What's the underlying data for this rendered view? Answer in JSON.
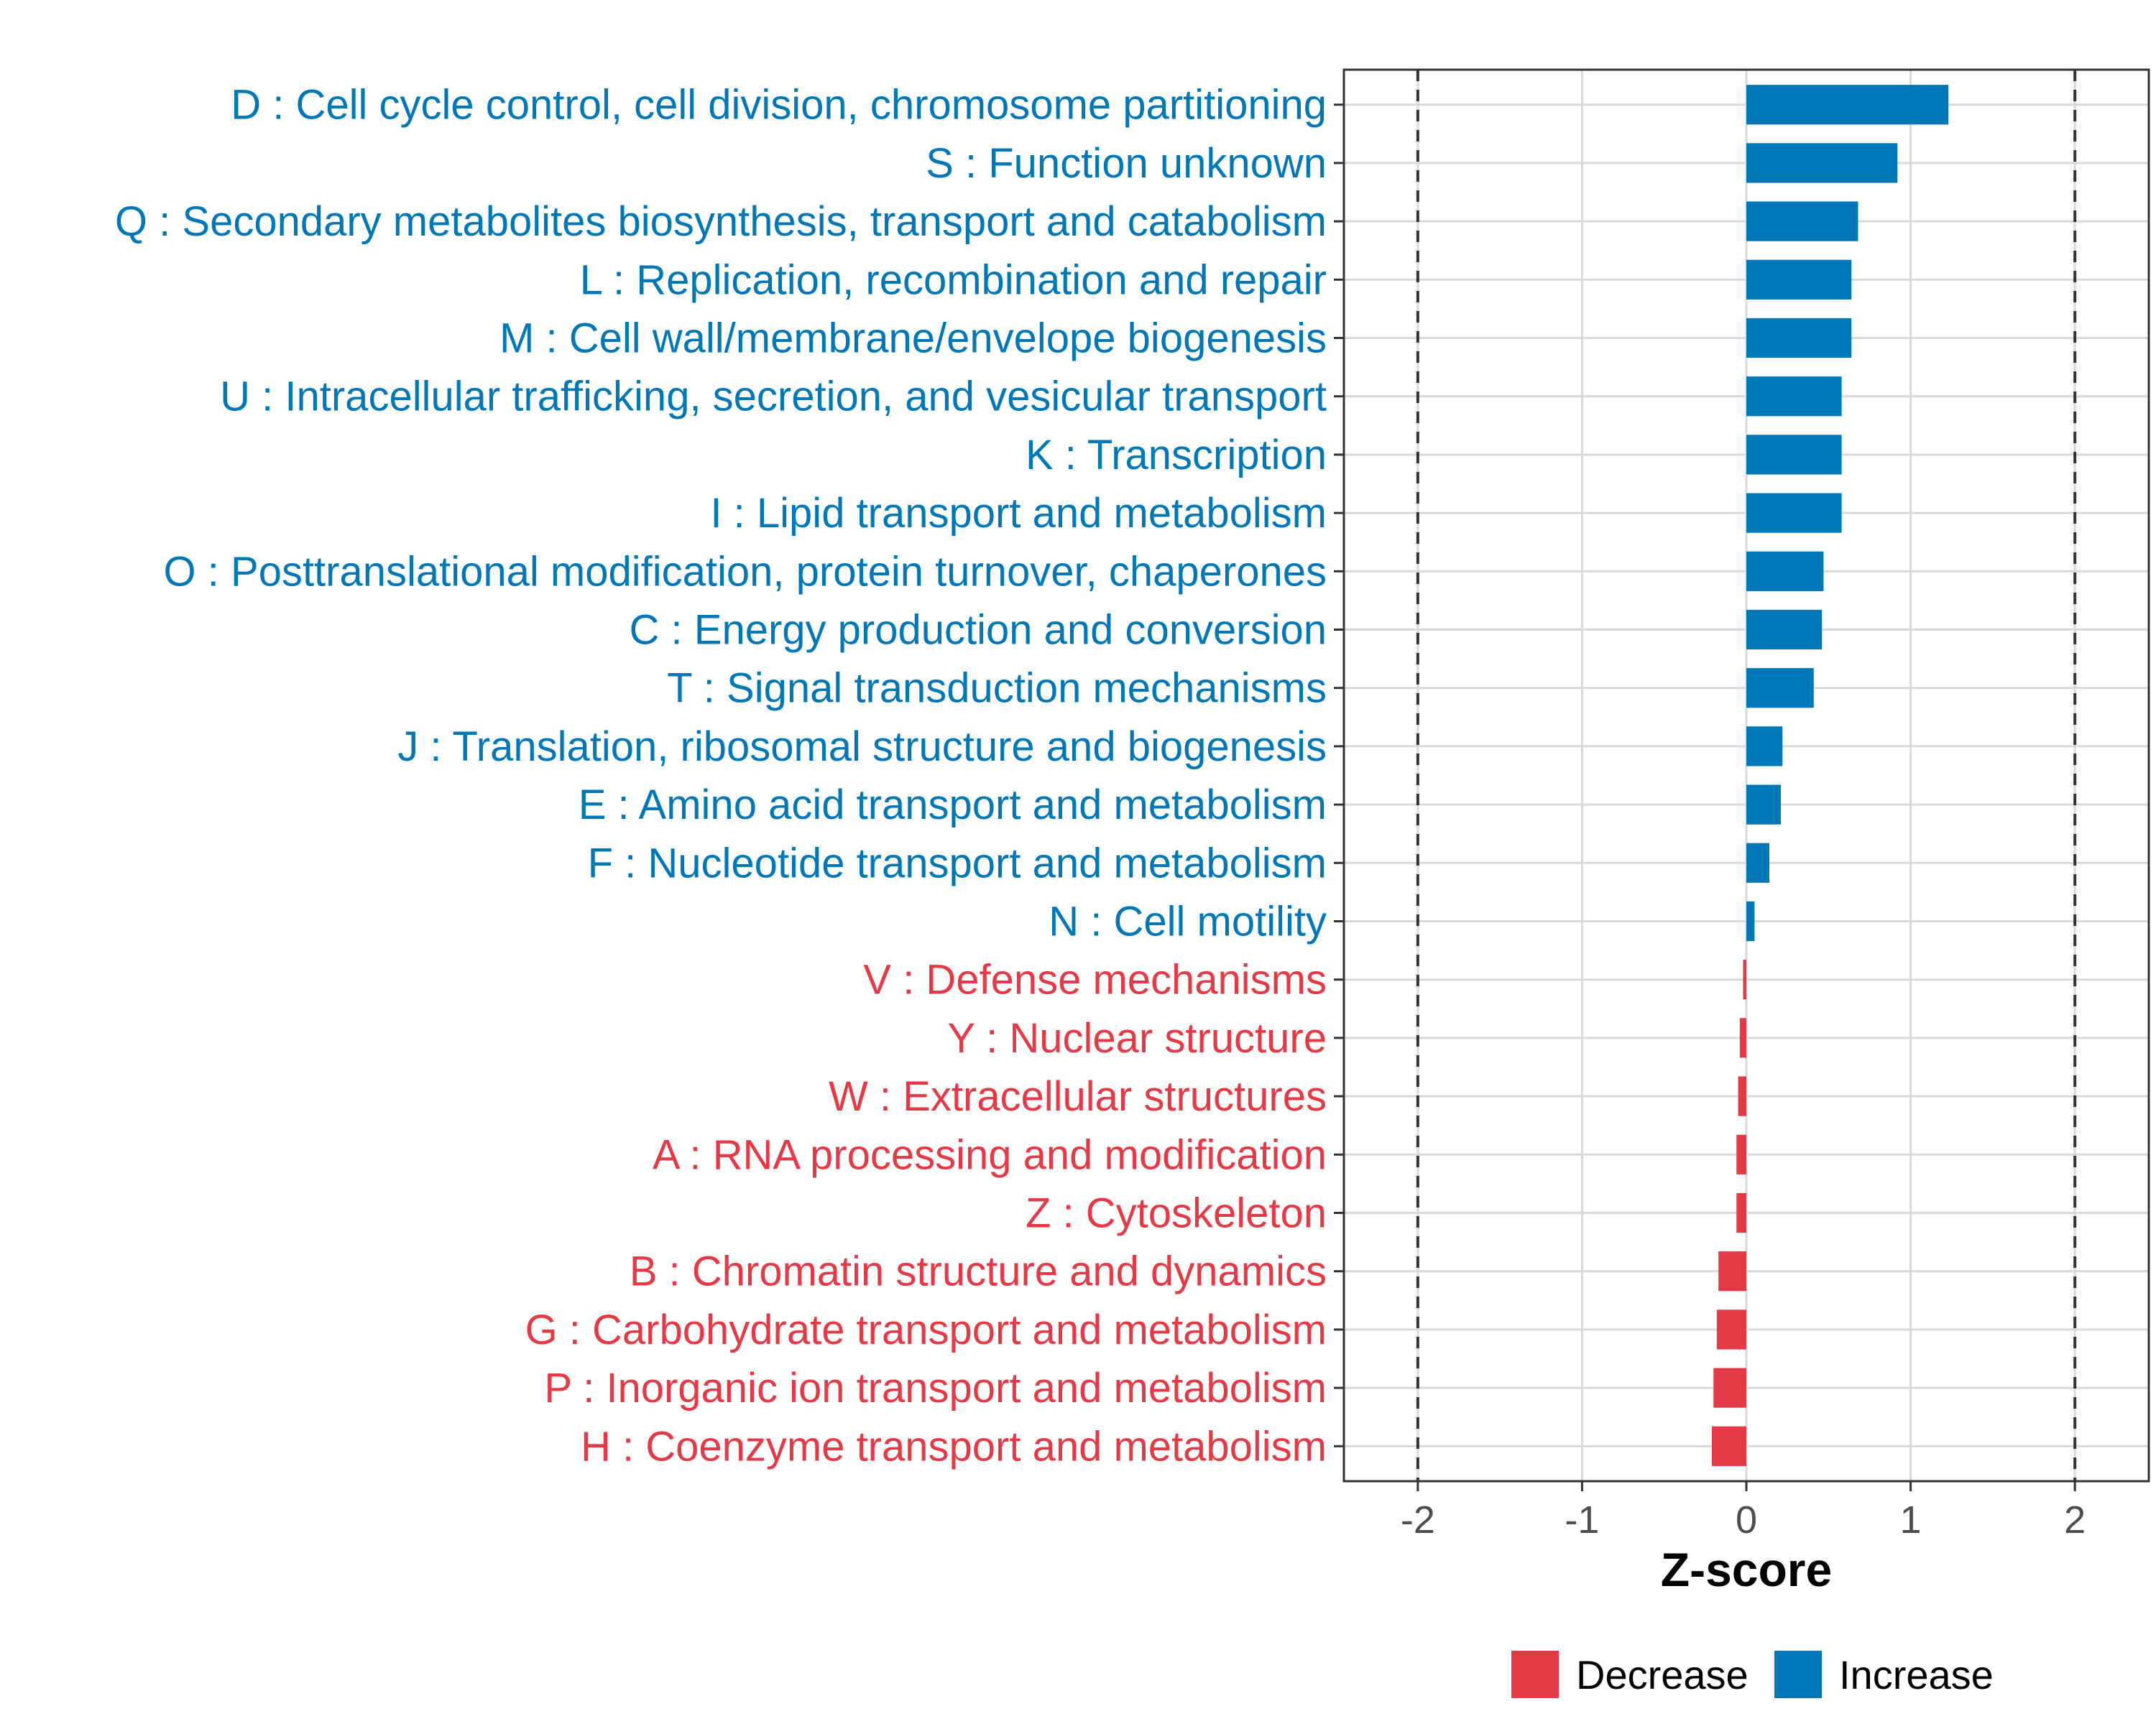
{
  "chart_data": {
    "type": "bar",
    "orientation": "horizontal",
    "xlabel": "Z-score",
    "ylabel": "",
    "xlim": [
      -2.45,
      2.45
    ],
    "xticks": [
      -2,
      -1,
      0,
      1,
      2
    ],
    "xtick_labels": [
      "-2",
      "-1",
      "0",
      "1",
      "2"
    ],
    "reference_lines": [
      -2,
      2
    ],
    "grid": true,
    "colors": {
      "Decrease": "#e63946",
      "Increase": "#0077b6"
    },
    "legend": {
      "position": "bottom",
      "entries": [
        "Decrease",
        "Increase"
      ]
    },
    "categories": [
      "D : Cell cycle control, cell division, chromosome partitioning",
      "S : Function unknown",
      "Q : Secondary metabolites biosynthesis, transport and catabolism",
      "L : Replication, recombination and repair",
      "M : Cell wall/membrane/envelope biogenesis",
      "U : Intracellular trafficking, secretion, and vesicular transport",
      "K : Transcription",
      "I : Lipid transport and metabolism",
      "O : Posttranslational modification, protein turnover, chaperones",
      "C : Energy production and conversion",
      "T : Signal transduction mechanisms",
      "J : Translation, ribosomal structure and biogenesis",
      "E : Amino acid transport and metabolism",
      "F : Nucleotide transport and metabolism",
      "N : Cell motility",
      "V : Defense mechanisms",
      "Y : Nuclear structure",
      "W : Extracellular structures",
      "A : RNA processing and modification",
      "Z : Cytoskeleton",
      "B : Chromatin structure and dynamics",
      "G : Carbohydrate transport and metabolism",
      "P : Inorganic ion transport and metabolism",
      "H : Coenzyme transport and metabolism"
    ],
    "values": [
      1.23,
      0.92,
      0.68,
      0.64,
      0.64,
      0.58,
      0.58,
      0.58,
      0.47,
      0.46,
      0.41,
      0.22,
      0.21,
      0.14,
      0.05,
      -0.02,
      -0.04,
      -0.05,
      -0.06,
      -0.06,
      -0.17,
      -0.18,
      -0.2,
      -0.21
    ],
    "direction": [
      "Increase",
      "Increase",
      "Increase",
      "Increase",
      "Increase",
      "Increase",
      "Increase",
      "Increase",
      "Increase",
      "Increase",
      "Increase",
      "Increase",
      "Increase",
      "Increase",
      "Increase",
      "Decrease",
      "Decrease",
      "Decrease",
      "Decrease",
      "Decrease",
      "Decrease",
      "Decrease",
      "Decrease",
      "Decrease"
    ]
  }
}
